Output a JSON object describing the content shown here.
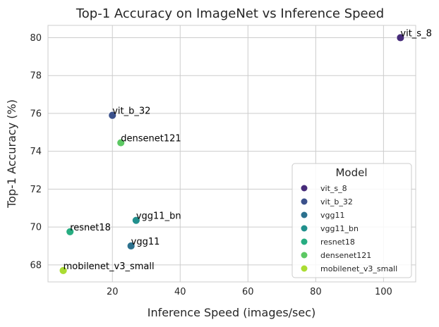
{
  "chart_data": {
    "type": "scatter",
    "title": "Top-1 Accuracy on ImageNet vs Inference Speed",
    "xlabel": "Inference Speed (images/sec)",
    "ylabel": "Top-1 Accuracy (%)",
    "xlim": [
      1,
      109.5
    ],
    "ylim": [
      67.1,
      80.65
    ],
    "xticks": [
      20,
      40,
      60,
      80,
      100
    ],
    "yticks": [
      68,
      70,
      72,
      74,
      76,
      78,
      80
    ],
    "grid": true,
    "legend": {
      "title": "Model",
      "placement": "lower-right"
    },
    "points": [
      {
        "label": "vit_s_8",
        "x": 105,
        "y": 80.0,
        "color": "#472c7a"
      },
      {
        "label": "vit_b_32",
        "x": 20,
        "y": 75.9,
        "color": "#3b518b"
      },
      {
        "label": "vgg11",
        "x": 25.5,
        "y": 69.0,
        "color": "#2c718e"
      },
      {
        "label": "vgg11_bn",
        "x": 27,
        "y": 70.35,
        "color": "#21908d"
      },
      {
        "label": "resnet18",
        "x": 7.5,
        "y": 69.75,
        "color": "#27ad81"
      },
      {
        "label": "densenet121",
        "x": 22.5,
        "y": 74.45,
        "color": "#5cc863"
      },
      {
        "label": "mobilenet_v3_small",
        "x": 5.5,
        "y": 67.7,
        "color": "#aadc32"
      }
    ]
  }
}
